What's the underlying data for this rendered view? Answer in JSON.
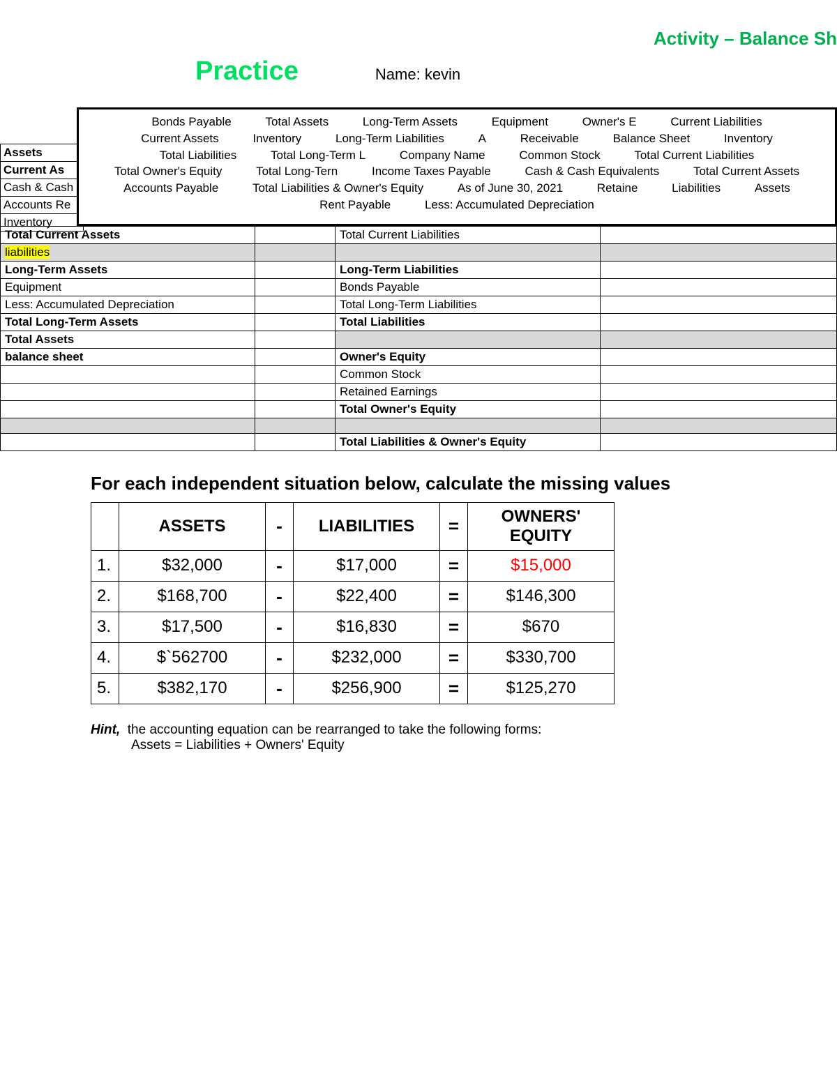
{
  "header": {
    "activity_title": "Activity – Balance Sh",
    "practice_label": "Practice",
    "name_prefix": "Name:",
    "name_value": "kevin"
  },
  "wordbank": {
    "terms": [
      "Bonds Payable",
      "Total Assets",
      "Long-Term Assets",
      "Equipment",
      "Owner's E",
      "Current Liabilities",
      "Current Assets",
      "Inventory",
      "Long-Term Liabilities",
      "A",
      "Receivable",
      "Balance Sheet",
      "Inventory",
      "Total Liabilities",
      "Total Long-Term L",
      "Company Name",
      "Common Stock",
      "Total Current Liabilities",
      "Total Owner's Equity",
      "Total Long-Tern",
      "Income Taxes Payable",
      "Cash & Cash Equivalents",
      "Total Current Assets",
      "Accounts Payable",
      "Total Liabilities & Owner's Equity",
      "As of June 30, 2021",
      "Retaine",
      "Liabilities",
      "Assets",
      "Rent Payable",
      "Less: Accumulated Depreciation"
    ]
  },
  "left_partial_rows": [
    "Assets",
    "Current As",
    "Cash & Cash",
    "Accounts Re",
    "Inventory"
  ],
  "balance_rows": [
    {
      "l": "Total Current Assets",
      "lb": true,
      "hl": false,
      "grey": false,
      "r": "Total Current Liabilities",
      "rb": false,
      "rgrey": false
    },
    {
      "l": "liabilities",
      "lb": false,
      "hl": true,
      "grey": true,
      "r": "",
      "rb": false,
      "rgrey": true
    },
    {
      "l": "Long-Term Assets",
      "lb": true,
      "hl": false,
      "grey": false,
      "r": "Long-Term Liabilities",
      "rb": true,
      "rgrey": false
    },
    {
      "l": "Equipment",
      "lb": false,
      "hl": false,
      "grey": false,
      "r": "Bonds Payable",
      "rb": false,
      "rgrey": false
    },
    {
      "l": "Less: Accumulated Depreciation",
      "lb": false,
      "hl": false,
      "grey": false,
      "r": "Total Long-Term Liabilities",
      "rb": false,
      "rgrey": false
    },
    {
      "l": "Total Long-Term Assets",
      "lb": true,
      "hl": false,
      "grey": false,
      "r": "Total Liabilities",
      "rb": true,
      "rgrey": false
    },
    {
      "l": "Total Assets",
      "lb": true,
      "hl": false,
      "grey": false,
      "r": "",
      "rb": false,
      "rgrey": true
    },
    {
      "l": "balance sheet",
      "lb": true,
      "hl": false,
      "grey": false,
      "r": "Owner's Equity",
      "rb": true,
      "rgrey": false
    },
    {
      "l": "",
      "lb": false,
      "hl": false,
      "grey": false,
      "r": "Common Stock",
      "rb": false,
      "rgrey": false
    },
    {
      "l": "",
      "lb": false,
      "hl": false,
      "grey": false,
      "r": "Retained Earnings",
      "rb": false,
      "rgrey": false
    },
    {
      "l": "",
      "lb": false,
      "hl": false,
      "grey": false,
      "r": "Total Owner's Equity",
      "rb": true,
      "rgrey": false
    },
    {
      "l": "",
      "lb": false,
      "hl": false,
      "grey": true,
      "r": "",
      "rb": false,
      "rgrey": true
    },
    {
      "l": "",
      "lb": false,
      "hl": false,
      "grey": false,
      "r": "Total Liabilities & Owner's Equity",
      "rb": true,
      "rgrey": false
    }
  ],
  "instruction": "For each independent situation below, calculate the missing values",
  "calc_headers": {
    "assets": "ASSETS",
    "liab": "LIABILITIES",
    "oe": "OWNERS' EQUITY",
    "minus": "-",
    "eq": "="
  },
  "calc_rows": [
    {
      "n": "1.",
      "a": "$32,000",
      "l": "$17,000",
      "o": "$15,000",
      "red": true
    },
    {
      "n": "2.",
      "a": "$168,700",
      "l": "$22,400",
      "o": "$146,300",
      "red": false
    },
    {
      "n": "3.",
      "a": "$17,500",
      "l": "$16,830",
      "o": "$670",
      "red": false
    },
    {
      "n": "4.",
      "a": "$`562700",
      "l": "$232,000",
      "o": "$330,700",
      "red": false
    },
    {
      "n": "5.",
      "a": "$382,170",
      "l": "$256,900",
      "o": "$125,270",
      "red": false
    }
  ],
  "hint": {
    "label": "Hint,",
    "text": "the accounting equation can be rearranged to take the following forms:",
    "eq": "Assets = Liabilities + Owners' Equity"
  },
  "colors": {
    "green": "#00b050",
    "bright_green": "#00e060",
    "red": "#ff0000",
    "yellow": "#ffff00",
    "grey": "#d9d9d9"
  }
}
